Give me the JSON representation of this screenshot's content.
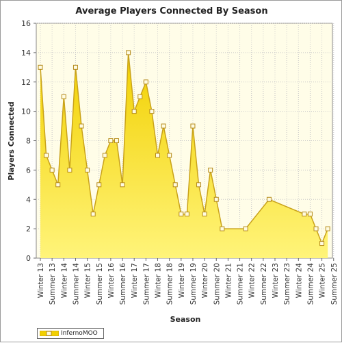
{
  "chart_data": {
    "type": "area",
    "title": "Average Players Connected By Season",
    "xlabel": "Season",
    "ylabel": "Players Connected",
    "ylim": [
      0,
      16
    ],
    "yticks": [
      0,
      2,
      4,
      6,
      8,
      10,
      12,
      14,
      16
    ],
    "grid": true,
    "legend_position": "bottom-left",
    "categories": [
      "Winter 13",
      "Summer 13",
      "Winter 14",
      "Summer 14",
      "Winter 15",
      "Summer 15",
      "Winter 16",
      "Summer 16",
      "Winter 17",
      "Summer 17",
      "Winter 18",
      "Summer 18",
      "Winter 19",
      "Summer 19",
      "Winter 20",
      "Summer 20",
      "Winter 21",
      "Summer 21",
      "Winter 22",
      "Summer 22",
      "Winter 23",
      "Summer 23",
      "Winter 24",
      "Summer 24",
      "Winter 25",
      "Summer 25"
    ],
    "series": [
      {
        "name": "InfernoMOO",
        "points": [
          {
            "x": 0.0,
            "y": 13
          },
          {
            "x": 0.5,
            "y": 7
          },
          {
            "x": 1.0,
            "y": 6
          },
          {
            "x": 1.5,
            "y": 5
          },
          {
            "x": 2.0,
            "y": 11
          },
          {
            "x": 2.5,
            "y": 6
          },
          {
            "x": 3.0,
            "y": 13
          },
          {
            "x": 3.5,
            "y": 9
          },
          {
            "x": 4.0,
            "y": 6
          },
          {
            "x": 4.5,
            "y": 3
          },
          {
            "x": 5.0,
            "y": 5
          },
          {
            "x": 5.5,
            "y": 7
          },
          {
            "x": 6.0,
            "y": 8
          },
          {
            "x": 6.5,
            "y": 8
          },
          {
            "x": 7.0,
            "y": 5
          },
          {
            "x": 7.5,
            "y": 14
          },
          {
            "x": 8.0,
            "y": 10
          },
          {
            "x": 8.5,
            "y": 11
          },
          {
            "x": 9.0,
            "y": 12
          },
          {
            "x": 9.5,
            "y": 10
          },
          {
            "x": 10.0,
            "y": 7
          },
          {
            "x": 10.5,
            "y": 9
          },
          {
            "x": 11.0,
            "y": 7
          },
          {
            "x": 11.5,
            "y": 5
          },
          {
            "x": 12.0,
            "y": 3
          },
          {
            "x": 12.5,
            "y": 3
          },
          {
            "x": 13.0,
            "y": 9
          },
          {
            "x": 13.5,
            "y": 5
          },
          {
            "x": 14.0,
            "y": 3
          },
          {
            "x": 14.5,
            "y": 6
          },
          {
            "x": 15.0,
            "y": 4
          },
          {
            "x": 15.5,
            "y": 2
          },
          {
            "x": 17.5,
            "y": 2
          },
          {
            "x": 19.5,
            "y": 4
          },
          {
            "x": 22.5,
            "y": 3
          },
          {
            "x": 23.0,
            "y": 3
          },
          {
            "x": 23.5,
            "y": 2
          },
          {
            "x": 24.0,
            "y": 1
          },
          {
            "x": 24.5,
            "y": 2
          }
        ]
      }
    ],
    "colors": {
      "fill_top": "#f2d000",
      "fill_bottom": "#fff47a",
      "line": "#c9a21a",
      "marker_fill": "#fffbe0",
      "marker_stroke": "#b58a1a",
      "plot_bg": "#fffde8",
      "grid": "#c8c8c8"
    }
  }
}
